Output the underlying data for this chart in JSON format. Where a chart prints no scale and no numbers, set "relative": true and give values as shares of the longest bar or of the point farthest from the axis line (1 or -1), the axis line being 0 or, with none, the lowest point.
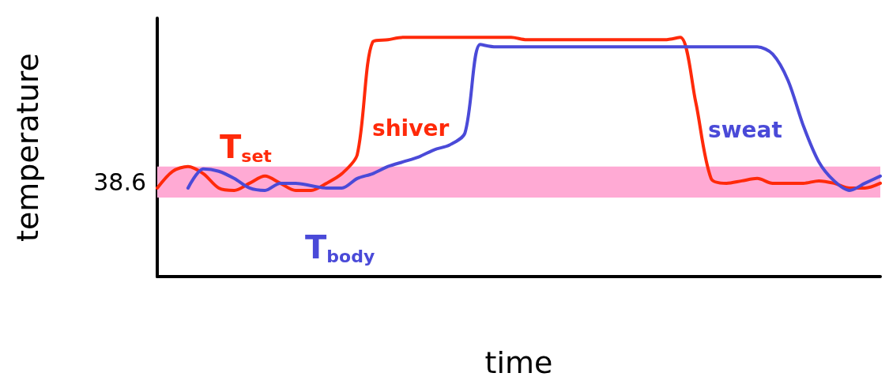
{
  "chart_data": {
    "type": "line",
    "relative": true,
    "xlabel": "time",
    "ylabel": "temperature",
    "categories": [
      null,
      null,
      null,
      null,
      null,
      null,
      null,
      null,
      null,
      null,
      null,
      null,
      null,
      null,
      null,
      null,
      null,
      null,
      null,
      null,
      null,
      null,
      null,
      null,
      null,
      null,
      null,
      null,
      null,
      null,
      null,
      null,
      null,
      null,
      null,
      null,
      null,
      null,
      null,
      null,
      null,
      null,
      null,
      null,
      null,
      null,
      null,
      null
    ],
    "series": [
      {
        "name": "T$_{set}$",
        "color": "#ff2a0a",
        "values": [
          0.37,
          0.44,
          0.46,
          0.43,
          0.37,
          0.36,
          0.39,
          0.42,
          0.39,
          0.36,
          0.36,
          0.39,
          0.43,
          0.51,
          0.98,
          0.99,
          1,
          1,
          1,
          1,
          1,
          1,
          1,
          1,
          0.99,
          0.99,
          0.99,
          0.99,
          0.99,
          0.99,
          0.99,
          0.99,
          0.99,
          0.99,
          1,
          0.73,
          0.41,
          0.39,
          0.4,
          0.41,
          0.39,
          0.39,
          0.39,
          0.4,
          0.39,
          0.37,
          0.37,
          0.39
        ]
      },
      {
        "name": "T$_{body}$",
        "color": "#4a4ad8",
        "values": [
          null,
          null,
          0.37,
          0.45,
          0.44,
          0.41,
          0.37,
          0.36,
          0.39,
          0.39,
          0.38,
          0.37,
          0.37,
          0.41,
          0.43,
          0.46,
          0.48,
          0.5,
          0.53,
          0.55,
          0.6,
          0.97,
          0.96,
          0.96,
          0.96,
          0.96,
          0.96,
          0.96,
          0.96,
          0.96,
          0.96,
          0.96,
          0.96,
          0.96,
          0.96,
          0.96,
          0.96,
          0.96,
          0.96,
          0.96,
          0.93,
          0.82,
          0.63,
          0.48,
          0.4,
          0.36,
          0.39,
          0.42
        ]
      }
    ],
    "bands": [
      {
        "axis": "y",
        "from": 0.33,
        "to": 0.46,
        "label": "38.6",
        "color": "#ffaad4"
      }
    ],
    "annotations": [
      "shiver",
      "sweat"
    ],
    "legend": false,
    "grid": false,
    "marker": "none",
    "line_style": "solid"
  }
}
